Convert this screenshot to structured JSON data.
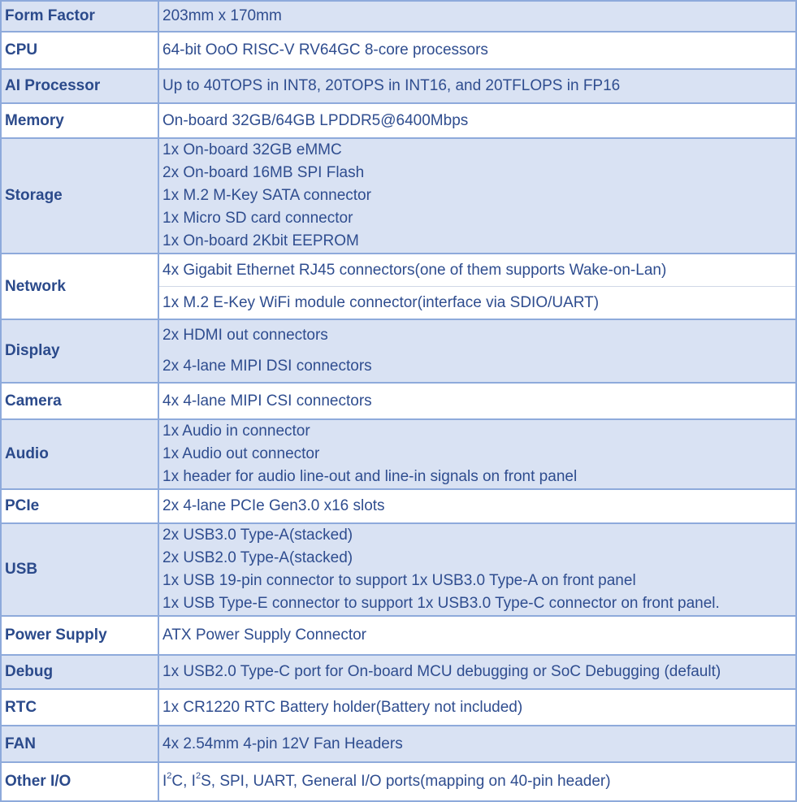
{
  "rows": [
    {
      "label": "Form Factor",
      "values": [
        "203mm x 170mm"
      ]
    },
    {
      "label": "CPU",
      "values": [
        "64-bit OoO RISC-V RV64GC 8-core processors"
      ]
    },
    {
      "label": "AI Processor",
      "values": [
        "Up to 40TOPS in INT8, 20TOPS in INT16, and 20TFLOPS in FP16"
      ]
    },
    {
      "label": "Memory",
      "values": [
        "On-board 32GB/64GB LPDDR5@6400Mbps"
      ]
    },
    {
      "label": "Storage",
      "values": [
        "1x On-board 32GB eMMC",
        "2x On-board 16MB SPI Flash",
        "1x M.2 M-Key SATA connector",
        "1x Micro SD card connector",
        "1x On-board 2Kbit EEPROM"
      ]
    },
    {
      "label": "Network",
      "values": [
        "4x Gigabit Ethernet RJ45 connectors(one of them supports Wake-on-Lan)",
        "1x M.2 E-Key WiFi module connector(interface via SDIO/UART)"
      ]
    },
    {
      "label": "Display",
      "values": [
        "2x HDMI out connectors",
        "2x 4-lane MIPI DSI connectors"
      ]
    },
    {
      "label": "Camera",
      "values": [
        "4x 4-lane MIPI CSI connectors"
      ]
    },
    {
      "label": "Audio",
      "values": [
        "1x Audio in connector",
        "1x Audio out connector",
        "1x header for audio line-out and line-in signals on front panel"
      ]
    },
    {
      "label": "PCIe",
      "values": [
        "2x 4-lane PCIe Gen3.0 x16 slots"
      ]
    },
    {
      "label": "USB",
      "values": [
        "2x USB3.0 Type-A(stacked)",
        "2x USB2.0 Type-A(stacked)",
        "1x USB 19-pin connector to support 1x USB3.0 Type-A on front panel",
        "1x USB Type-E connector to support 1x USB3.0 Type-C connector on front panel."
      ]
    },
    {
      "label": "Power Supply",
      "values": [
        "ATX Power Supply Connector"
      ]
    },
    {
      "label": "Debug",
      "values": [
        "1x USB2.0 Type-C port for On-board MCU debugging or SoC Debugging (default)"
      ]
    },
    {
      "label": "RTC",
      "values": [
        "1x CR1220 RTC Battery holder(Battery not included)"
      ]
    },
    {
      "label": "FAN",
      "values": [
        "4x 2.54mm 4-pin 12V Fan Headers"
      ]
    }
  ],
  "other_io": {
    "label": "Other I/O",
    "parts": [
      "I",
      "2",
      "C, I",
      "2",
      "S, SPI, UART, General I/O ports(mapping on 40-pin header)"
    ]
  },
  "colors": {
    "band": "#d9e2f3",
    "border": "#8eaadb",
    "text": "#2f4d8f"
  }
}
